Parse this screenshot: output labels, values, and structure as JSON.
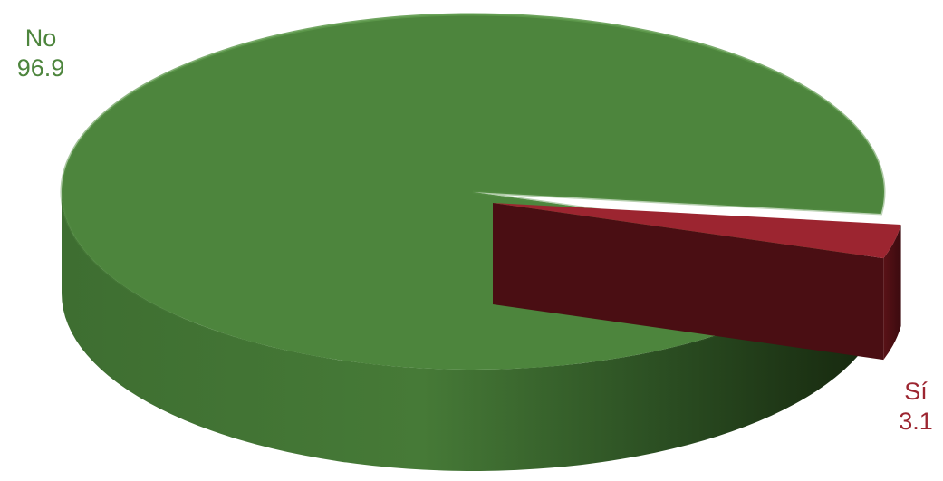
{
  "chart_data": {
    "type": "pie",
    "style": "3d",
    "slices": [
      {
        "label": "No",
        "value": 96.9,
        "color": "#4d853d"
      },
      {
        "label": "Sí",
        "value": 3.1,
        "color": "#9c2530"
      }
    ],
    "legend": "none"
  }
}
